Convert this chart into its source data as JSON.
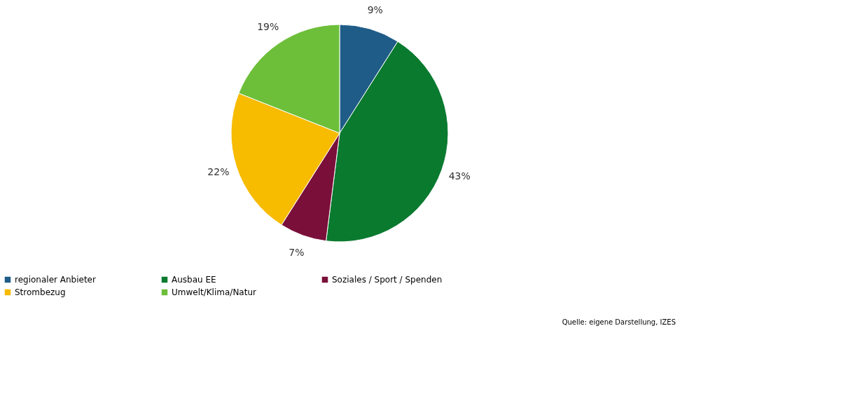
{
  "chart_data": {
    "type": "pie",
    "categories": [
      "regionaler Anbieter",
      "Ausbau EE",
      "Soziales / Sport / Spenden",
      "Strombezug",
      "Umwelt/Klima/Natur"
    ],
    "values": [
      9,
      43,
      7,
      22,
      19
    ],
    "colors": [
      "#1f5c87",
      "#0a7a2f",
      "#7a0f3a",
      "#f7bb00",
      "#6dbf3a"
    ],
    "value_labels": [
      "9%",
      "43%",
      "7%",
      "22%",
      "19%"
    ],
    "legend": "bottom",
    "annotations": [
      "Quelle: eigene Darstellung, IZES"
    ]
  }
}
